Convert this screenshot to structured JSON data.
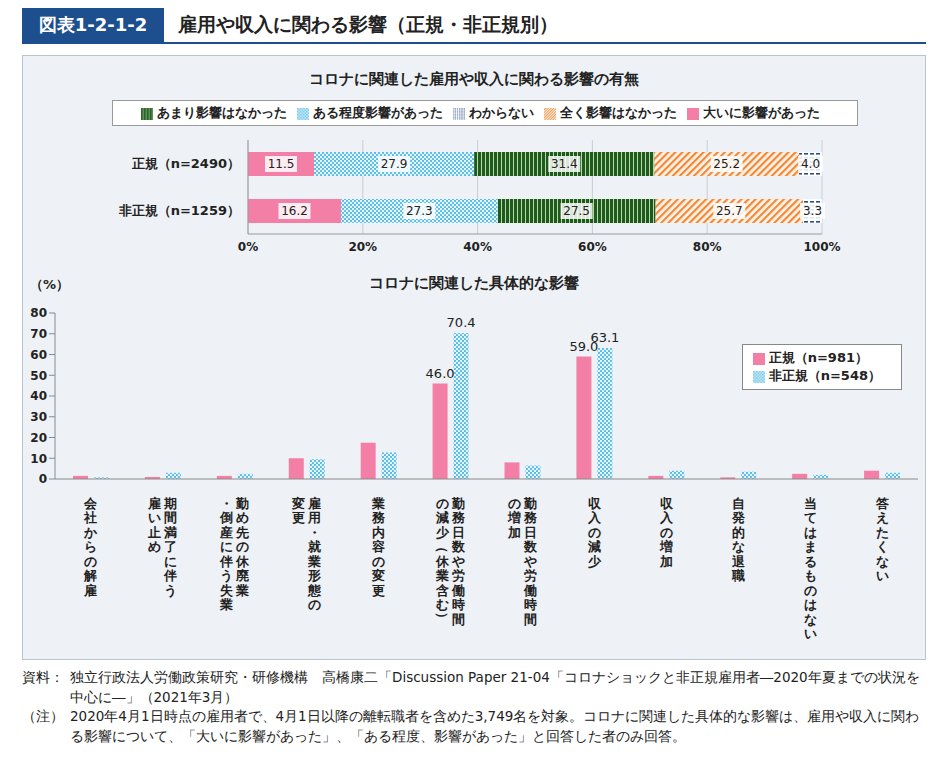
{
  "header": {
    "figure": "図表1-2-1-2",
    "title": "雇用や収入に関わる影響（正規・非正規別）"
  },
  "chart_data": [
    {
      "type": "bar",
      "title": "コロナに関連した雇用や収入に関わる影響の有無",
      "orientation": "horizontal",
      "stacked": true,
      "data_labels": true,
      "grid": true,
      "legend": "top",
      "categories": [
        "正規（n=2490）",
        "非正規（n=1259）"
      ],
      "series": [
        {
          "name": "大いに影響があった",
          "color": "#f37fa6",
          "values": [
            11.5,
            16.2
          ]
        },
        {
          "name": "ある程度影響があった",
          "color": "#4fb8e6",
          "values": [
            27.9,
            27.3
          ]
        },
        {
          "name": "あまり影響はなかった",
          "color": "#1e5a1e",
          "values": [
            31.4,
            27.5
          ]
        },
        {
          "name": "全く影響はなかった",
          "color": "#f08a3a",
          "values": [
            25.2,
            25.7
          ]
        },
        {
          "name": "わからない",
          "color": "#2b4d8c",
          "values": [
            4.0,
            3.3
          ],
          "value_labels": [
            "4.0",
            "3.3"
          ]
        }
      ],
      "xlim": [
        0,
        100
      ],
      "xticks": [
        {
          "value": 0,
          "label": "0%"
        },
        {
          "value": 20,
          "label": "20%"
        },
        {
          "value": 40,
          "label": "40%"
        },
        {
          "value": 60,
          "label": "60%"
        },
        {
          "value": 80,
          "label": "80%"
        },
        {
          "value": 100,
          "label": "100%"
        }
      ]
    },
    {
      "type": "bar",
      "title": "コロナに関連した具体的な影響",
      "y_label": "（%）",
      "grid": false,
      "legend": "top-right",
      "data_labels": true,
      "categories": [
        "会社からの解雇",
        "期間満了に伴う\n雇い止め",
        "勤め先の休廃業\n・倒産に伴う失業",
        "雇用・就業形態の\n変更",
        "業務内容の変更",
        "勤務日数や労働時間\nの減少（休業含む）",
        "勤務日数や労働時間\nの増加",
        "収入の減少",
        "収入の増加",
        "自発的な退職",
        "当てはまるものはない",
        "答えたくない"
      ],
      "series": [
        {
          "name": "正規（n=981）",
          "color": "#f37fa6",
          "values": [
            1.5,
            1.0,
            1.5,
            10.0,
            17.5,
            46.0,
            8.0,
            59.0,
            1.5,
            0.8,
            2.5,
            4.0
          ],
          "value_labels": [
            null,
            null,
            null,
            null,
            null,
            "46.0",
            null,
            "59.0",
            null,
            null,
            null,
            null
          ]
        },
        {
          "name": "非正規（n=548）",
          "color": "#4fb8e6",
          "values": [
            0.8,
            3.0,
            2.5,
            9.5,
            12.8,
            70.4,
            6.5,
            63.1,
            4.0,
            3.5,
            2.0,
            3.0
          ],
          "value_labels": [
            null,
            null,
            null,
            null,
            null,
            "70.4",
            null,
            "63.1",
            null,
            null,
            null,
            null
          ]
        }
      ],
      "ylim": [
        0,
        80
      ],
      "yticks": [
        0,
        10,
        20,
        30,
        40,
        50,
        60,
        70,
        80
      ]
    }
  ],
  "notes": {
    "source_label": "資料：",
    "source": "独立行政法人労働政策研究・研修機構　高橋康二「Discussion Paper 21-04「コロナショックと非正規雇用者―2020年夏までの状況を中心に―」（2021年3月）",
    "note_label": "（注）",
    "note": "2020年4月1日時点の雇用者で、4月1日以降の離転職者を含めた3,749名を対象。コロナに関連した具体的な影響は、雇用や収入に関わる影響について、「大いに影響があった」、「ある程度、影響があった」と回答した者のみ回答。"
  }
}
